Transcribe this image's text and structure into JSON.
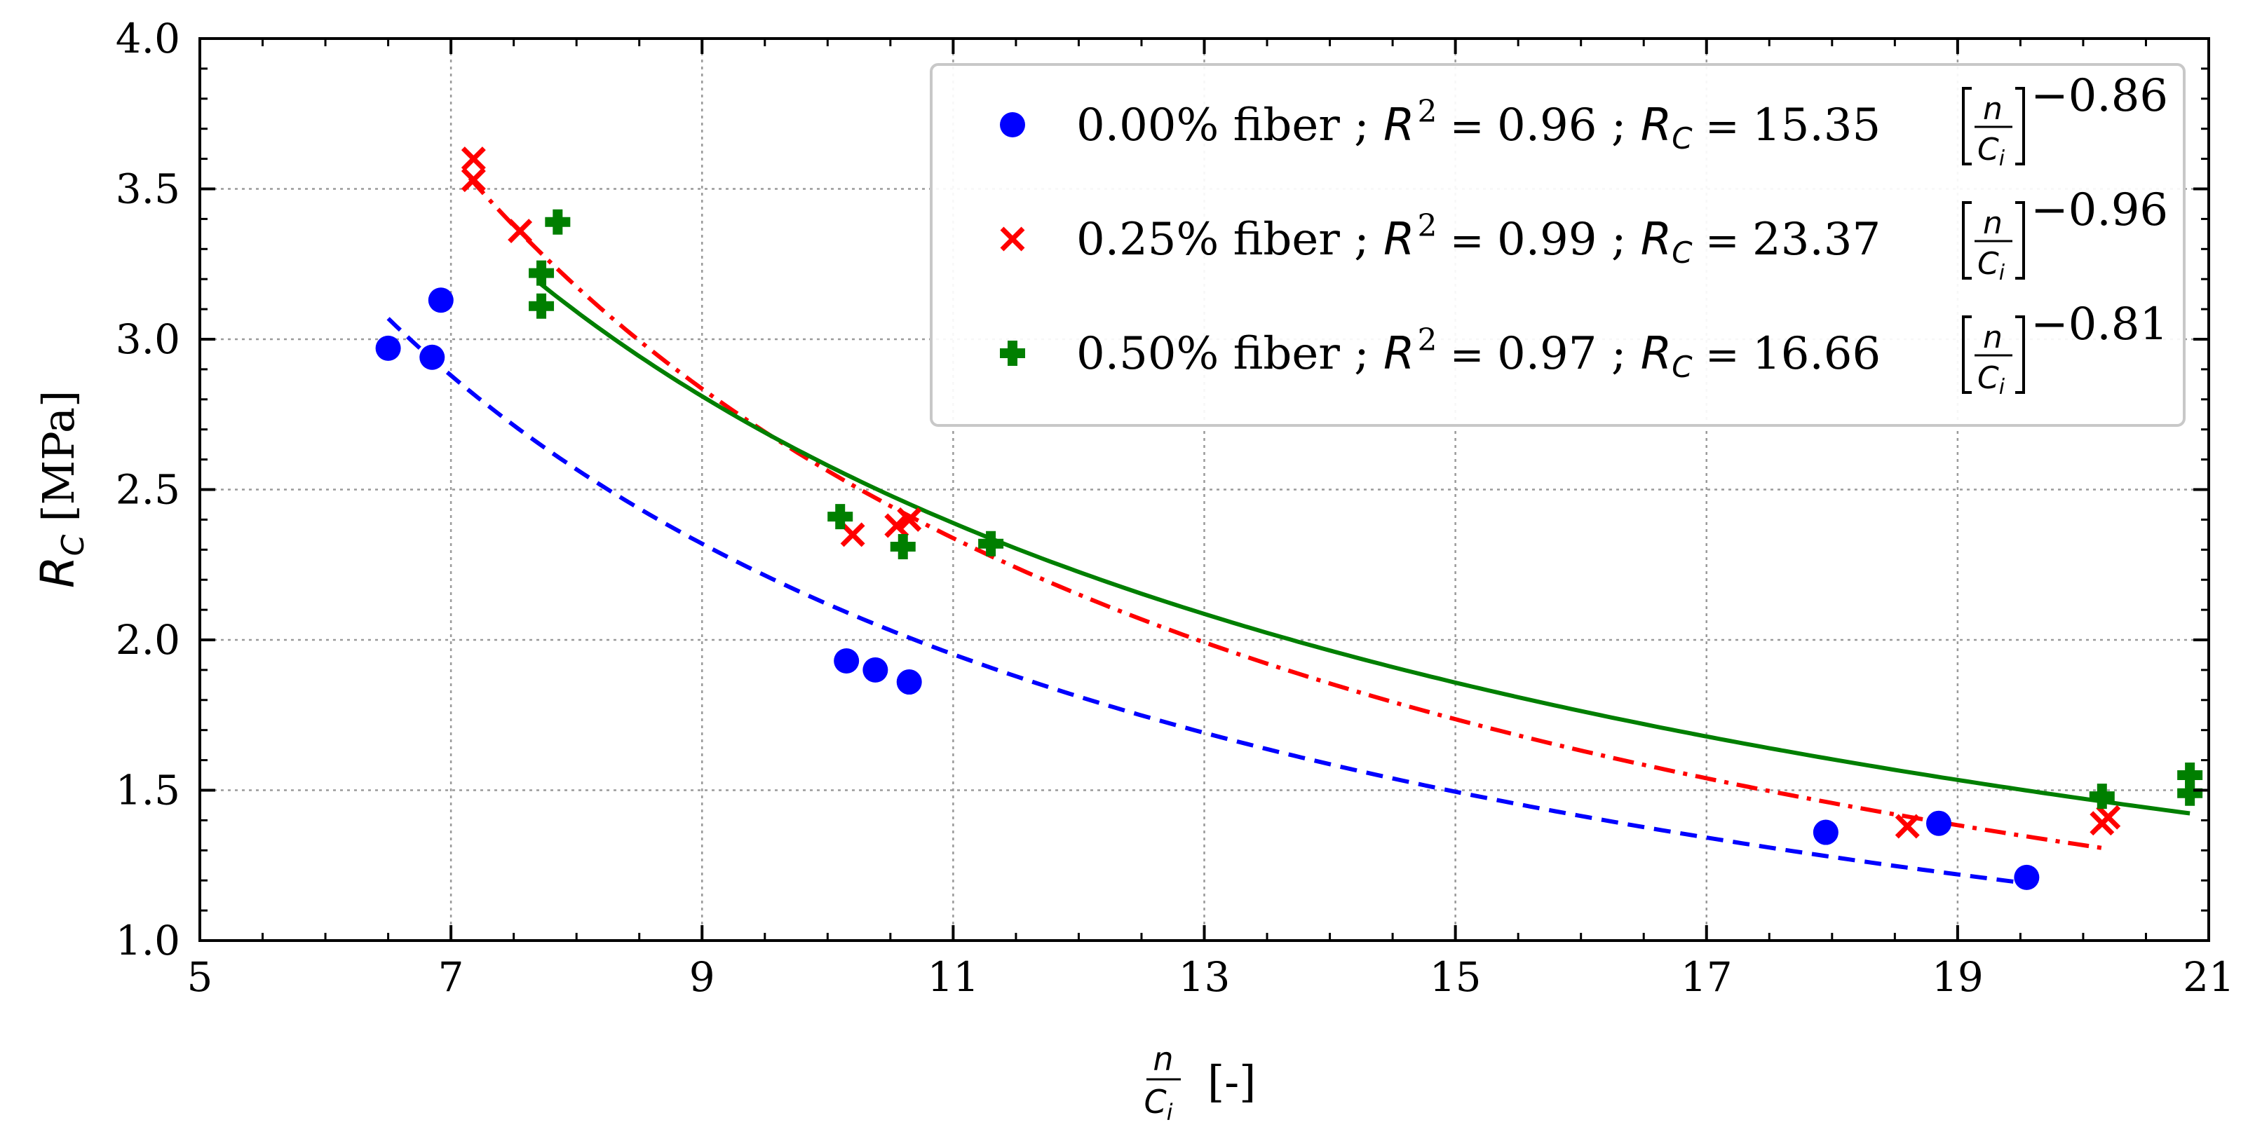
{
  "chart_data": {
    "type": "scatter",
    "title": "",
    "xlabel": {
      "numerator": "n",
      "denominator": "C",
      "denominator_subscript": "i",
      "unit": "[-]"
    },
    "ylabel": {
      "symbol": "R",
      "subscript": "C",
      "unit": "[MPa]"
    },
    "xlim": [
      5,
      21
    ],
    "ylim": [
      1.0,
      4.0
    ],
    "x_ticks": [
      5,
      7,
      9,
      11,
      13,
      15,
      17,
      19,
      21
    ],
    "x_tick_labels": [
      "5",
      "7",
      "9",
      "11",
      "13",
      "15",
      "17",
      "19",
      "21"
    ],
    "y_ticks": [
      1.0,
      1.5,
      2.0,
      2.5,
      3.0,
      3.5,
      4.0
    ],
    "y_tick_labels": [
      "1.0",
      "1.5",
      "2.0",
      "2.5",
      "3.0",
      "3.5",
      "4.0"
    ],
    "grid": true,
    "legend_position": "top-right",
    "series": [
      {
        "name": "0.00% fiber",
        "label": "0.00% fiber",
        "marker": "circle",
        "color": "#0000ff",
        "line_style": "dashed",
        "r2": "0.96",
        "coef": "15.35",
        "exponent": "−0.86",
        "fit": {
          "a": 15.35,
          "b": -0.86,
          "x_range": [
            6.5,
            19.5
          ]
        },
        "points": [
          [
            6.5,
            2.97
          ],
          [
            6.85,
            2.94
          ],
          [
            6.92,
            3.13
          ],
          [
            10.15,
            1.93
          ],
          [
            10.38,
            1.9
          ],
          [
            10.65,
            1.86
          ],
          [
            17.95,
            1.36
          ],
          [
            18.85,
            1.39
          ],
          [
            19.55,
            1.21
          ]
        ]
      },
      {
        "name": "0.25% fiber",
        "label": "0.25% fiber",
        "marker": "x",
        "color": "#ff0000",
        "line_style": "dashdot",
        "r2": "0.99",
        "coef": "23.37",
        "exponent": "−0.96",
        "fit": {
          "a": 23.37,
          "b": -0.96,
          "x_range": [
            7.15,
            20.2
          ]
        },
        "points": [
          [
            7.18,
            3.6
          ],
          [
            7.18,
            3.53
          ],
          [
            7.55,
            3.36
          ],
          [
            10.2,
            2.35
          ],
          [
            10.55,
            2.38
          ],
          [
            10.65,
            2.4
          ],
          [
            18.6,
            1.38
          ],
          [
            20.15,
            1.39
          ],
          [
            20.2,
            1.41
          ]
        ]
      },
      {
        "name": "0.50% fiber",
        "label": "0.50% fiber",
        "marker": "plus",
        "color": "#007f00",
        "line_style": "solid",
        "r2": "0.97",
        "coef": "16.66",
        "exponent": "−0.81",
        "fit": {
          "a": 16.66,
          "b": -0.81,
          "x_range": [
            7.7,
            20.85
          ]
        },
        "points": [
          [
            7.72,
            3.22
          ],
          [
            7.72,
            3.11
          ],
          [
            7.85,
            3.39
          ],
          [
            10.1,
            2.41
          ],
          [
            10.6,
            2.31
          ],
          [
            11.3,
            2.32
          ],
          [
            20.15,
            1.48
          ],
          [
            20.85,
            1.49
          ],
          [
            20.85,
            1.55
          ]
        ]
      }
    ]
  },
  "legend": {
    "separator": ";",
    "r2_symbol": "R",
    "r2_exponent": "2",
    "rc_symbol": "R",
    "rc_subscript": "C",
    "equals": "=",
    "fraction_numerator": "n",
    "fraction_denominator": "C",
    "fraction_denominator_subscript": "i"
  }
}
